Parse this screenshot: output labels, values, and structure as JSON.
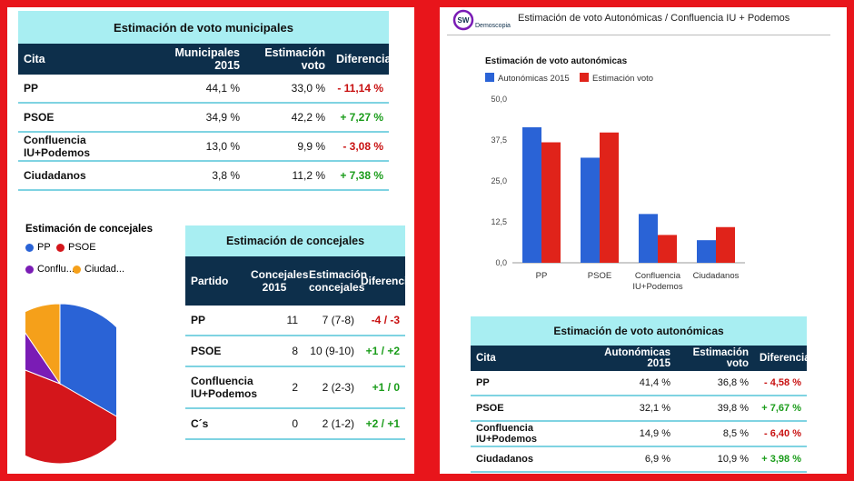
{
  "municipal_table": {
    "title": "Estimación de voto municipales",
    "headers": [
      "Cita",
      "Municipales 2015",
      "Estimación voto",
      "Diferencia"
    ],
    "rows": [
      [
        "PP",
        "44,1 %",
        "33,0 %",
        "- 11,14 %"
      ],
      [
        "PSOE",
        "34,9 %",
        "42,2 %",
        "+ 7,27 %"
      ],
      [
        "Confluencia IU+Podemos",
        "13,0 %",
        "9,9 %",
        "- 3,08 %"
      ],
      [
        "Ciudadanos",
        "3,8 %",
        "11,2 %",
        "+ 7,38 %"
      ]
    ]
  },
  "councillors_table": {
    "title": "Estimación de concejales",
    "headers": [
      "Partido",
      "Concejales 2015",
      "Estimación concejales",
      "Diferencia"
    ],
    "rows": [
      [
        "PP",
        "11",
        "7 (7-8)",
        "-4 / -3"
      ],
      [
        "PSOE",
        "8",
        "10 (9-10)",
        "+1 / +2"
      ],
      [
        "Confluencia IU+Podemos",
        "2",
        "2 (2-3)",
        "+1 / 0"
      ],
      [
        "C´s",
        "0",
        "2 (1-2)",
        "+2 / +1"
      ]
    ]
  },
  "header": {
    "brand_badge": "SW",
    "brand_name": "Demoscopia",
    "title": "Estimación de voto Autonómicas / Confluencia IU + Podemos"
  },
  "regional_table": {
    "title": "Estimación de voto autonómicas",
    "headers": [
      "Cita",
      "Autonómicas 2015",
      "Estimación voto",
      "Diferencia"
    ],
    "rows": [
      [
        "PP",
        "41,4 %",
        "36,8 %",
        "- 4,58 %"
      ],
      [
        "PSOE",
        "32,1 %",
        "39,8 %",
        "+ 7,67 %"
      ],
      [
        "Confluencia IU+Podemos",
        "14,9 %",
        "8,5 %",
        "- 6,40 %"
      ],
      [
        "Ciudadanos",
        "6,9 %",
        "10,9 %",
        "+ 3,98 %"
      ]
    ]
  },
  "colors": {
    "blue": "#2a63d6",
    "red": "#e0231a",
    "purple": "#7a1cb5",
    "orange": "#f5a01a",
    "table_header": "#0d2f4b",
    "table_title": "#a8eef2",
    "frame": "#e8151b"
  },
  "chart_data": [
    {
      "type": "pie",
      "title": "Estimación de concejales",
      "labels": [
        "PP",
        "PSOE",
        "Conflu...",
        "Ciudad..."
      ],
      "values": [
        7,
        10,
        2,
        2
      ],
      "colors": [
        "#2a63d6",
        "#d4161b",
        "#7a1cb5",
        "#f5a01a"
      ],
      "legend_position": "top"
    },
    {
      "type": "bar",
      "title": "Estimación de voto autonómicas",
      "categories": [
        "PP",
        "PSOE",
        "Confluencia IU+Podemos",
        "Ciudadanos"
      ],
      "series": [
        {
          "name": "Autonómicas 2015",
          "values": [
            41.4,
            32.1,
            14.9,
            6.9
          ],
          "color": "#2a63d6"
        },
        {
          "name": "Estimación voto",
          "values": [
            36.8,
            39.8,
            8.5,
            10.9
          ],
          "color": "#e0231a"
        }
      ],
      "ylim": [
        0,
        50
      ],
      "yticks": [
        "0,0",
        "12,5",
        "25,0",
        "37,5",
        "50,0"
      ],
      "legend_position": "top",
      "grid": false
    }
  ]
}
